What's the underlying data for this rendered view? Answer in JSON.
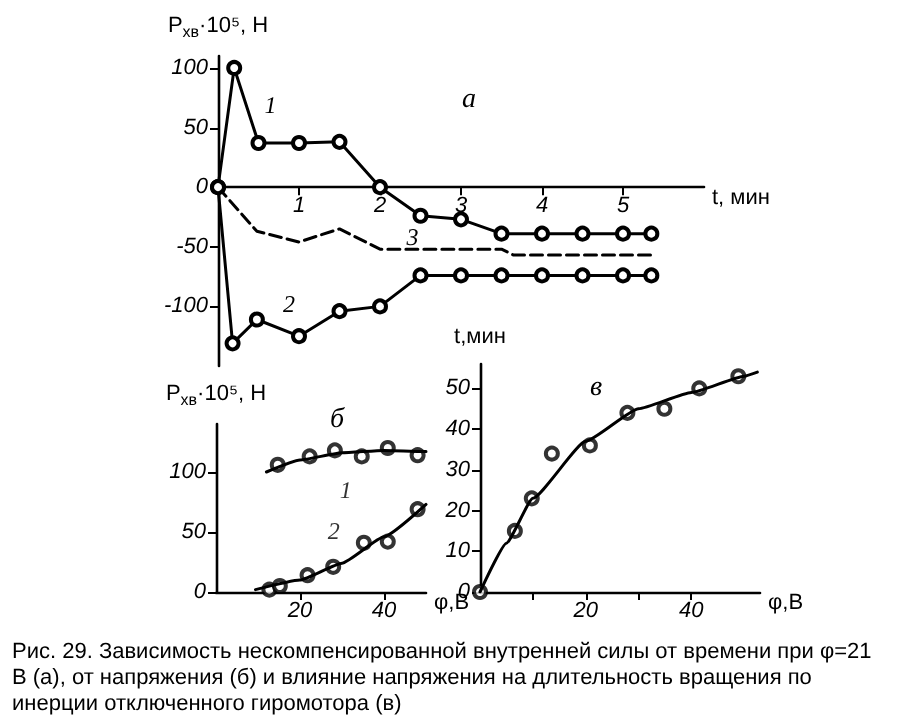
{
  "chart_data": [
    {
      "type": "line",
      "title": "а",
      "xlabel": "t, мин",
      "ylabel": "P$_{хв}$·10⁵, Н",
      "xlim": [
        0,
        6
      ],
      "xticks": [
        1,
        2,
        3,
        4,
        5
      ],
      "ylim": [
        -150,
        110
      ],
      "yticks": [
        -100,
        -50,
        0,
        50,
        100
      ],
      "grid": false,
      "series": [
        {
          "name": "1",
          "color": "#000000",
          "marker": "circle",
          "line_style": "solid",
          "x": [
            0,
            0.2,
            0.5,
            1,
            1.5,
            2,
            2.5,
            3,
            3.5,
            4,
            4.5,
            5,
            5.35
          ],
          "values": [
            0,
            100,
            37,
            37,
            38,
            0,
            -24,
            -27,
            -39,
            -39,
            -39,
            -39,
            -39
          ]
        },
        {
          "name": "2",
          "color": "#000000",
          "marker": "circle",
          "line_style": "solid",
          "x": [
            0,
            0.18,
            0.48,
            1,
            1.5,
            2,
            2.5,
            3,
            3.5,
            4,
            4.5,
            5,
            5.35
          ],
          "values": [
            0,
            -131,
            -111,
            -125,
            -104,
            -100,
            -74,
            -74,
            -74,
            -74,
            -74,
            -74,
            -74
          ]
        },
        {
          "name": "3",
          "color": "#000000",
          "marker": "none",
          "line_style": "dashed",
          "x": [
            0,
            0.48,
            1,
            1.5,
            2,
            2.5,
            3.5,
            3.65,
            5.35
          ],
          "values": [
            0,
            -37,
            -46,
            -35,
            -52,
            -52,
            -52,
            -57,
            -57
          ]
        }
      ]
    },
    {
      "type": "line",
      "title": "б",
      "xlabel": "φ,В",
      "ylabel": "P$_{хв}$·10⁵, Н",
      "xlim": [
        0,
        50
      ],
      "xticks": [
        20,
        40
      ],
      "ylim": [
        0,
        140
      ],
      "yticks": [
        0,
        50,
        100
      ],
      "grid": false,
      "series": [
        {
          "name": "1",
          "type": "scatter",
          "color": "#000000",
          "marker": "circle",
          "x": [
            14.7,
            22.3,
            28.3,
            34.7,
            40.9,
            48
          ],
          "values": [
            106,
            113,
            118,
            113,
            120,
            114
          ]
        },
        {
          "color": "#000000",
          "marker": "none",
          "line_style": "solid",
          "x": [
            12,
            20,
            30,
            40,
            50
          ],
          "values": [
            100,
            110,
            116,
            118,
            117
          ]
        },
        {
          "name": "2",
          "type": "scatter",
          "color": "#000000",
          "marker": "circle",
          "x": [
            12.7,
            15.2,
            21.8,
            27.9,
            35.2,
            40.9,
            48
          ],
          "values": [
            2,
            5,
            14,
            21,
            41,
            42,
            69
          ]
        },
        {
          "color": "#000000",
          "marker": "none",
          "line_style": "solid",
          "x": [
            9.4,
            20,
            30,
            40,
            50
          ],
          "values": [
            2,
            10,
            24,
            46,
            73
          ]
        }
      ]
    },
    {
      "type": "line",
      "title": "в",
      "xlabel": "φ,В",
      "ylabel": "t,мин",
      "xlim": [
        0,
        53
      ],
      "xticks": [
        {
          "value": 10,
          "label": null
        },
        20,
        {
          "value": 30,
          "label": null
        },
        40
      ],
      "ylim": [
        0,
        56
      ],
      "yticks": [
        0,
        10,
        20,
        30,
        40,
        50
      ],
      "grid": false,
      "annotations": [
        "Рис. 29. Зависимость нескомпенсированной внутренней силы от времени при φ=21 В (а), от напряжения (б) и влияние напряжения на длительность вращения по инерции отключенного гиромотора (в)"
      ],
      "series": [
        {
          "type": "scatter",
          "color": "#000000",
          "marker": "circle",
          "x": [
            0,
            6.6,
            9.8,
            13.6,
            20.8,
            27.9,
            34.9,
            41.5,
            48.9
          ],
          "values": [
            0,
            15,
            23,
            34,
            36,
            44,
            45,
            50,
            53
          ]
        },
        {
          "color": "#000000",
          "marker": "none",
          "line_style": "solid",
          "x": [
            0,
            5,
            10,
            20,
            30,
            40,
            50,
            52.5
          ],
          "values": [
            0,
            12,
            23,
            37,
            45,
            49,
            53,
            54
          ]
        }
      ]
    }
  ]
}
